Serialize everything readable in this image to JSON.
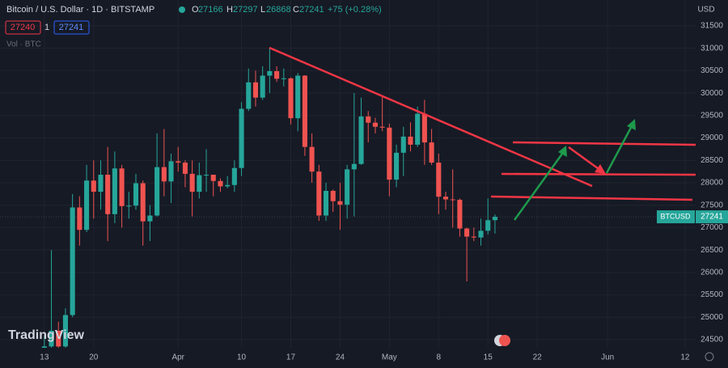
{
  "header": {
    "title": "Bitcoin / U.S. Dollar · 1D · BITSTAMP",
    "o_label": "O",
    "o": "27166",
    "h_label": "H",
    "h": "27297",
    "l_label": "L",
    "l": "26868",
    "c_label": "C",
    "c": "27241",
    "change": "+75 (+0.28%)",
    "bid": "27240",
    "spread": "1",
    "ask": "27241",
    "volume": "Vol · BTC",
    "currency": "USD",
    "symbol_tag": "BTCUSD",
    "price_tag": "27241",
    "logo": "TradingView"
  },
  "chart_data": {
    "type": "candlestick",
    "up_color": "#26a69a",
    "down_color": "#ef5350",
    "grid": true,
    "xlim": [
      -6.3,
      92.5
    ],
    "xticks": [
      {
        "value": 0,
        "label": "13"
      },
      {
        "value": 7,
        "label": "20"
      },
      {
        "value": 19,
        "label": "Apr"
      },
      {
        "value": 28,
        "label": "10"
      },
      {
        "value": 35,
        "label": "17"
      },
      {
        "value": 42,
        "label": "24"
      },
      {
        "value": 49,
        "label": "May"
      },
      {
        "value": 56,
        "label": "8"
      },
      {
        "value": 63,
        "label": "15"
      },
      {
        "value": 70,
        "label": "22"
      },
      {
        "value": 80,
        "label": "Jun"
      },
      {
        "value": 91,
        "label": "12"
      }
    ],
    "ylim": [
      24320,
      32077
    ],
    "yticks": [
      24500,
      25000,
      25500,
      26000,
      26500,
      27000,
      27500,
      28000,
      28500,
      29000,
      29500,
      30000,
      30500,
      31000,
      31500
    ],
    "open": [
      24200,
      24350,
      24700,
      24350,
      25050,
      27450,
      26950,
      28050,
      27800,
      28180,
      27300,
      28320,
      27480,
      27490,
      27990,
      27140,
      27270,
      28350,
      28030,
      28480,
      28450,
      28200,
      27800,
      28170,
      28180,
      28040,
      27920,
      27950,
      28330,
      29650,
      30240,
      29900,
      30390,
      30490,
      30320,
      30330,
      29440,
      30390,
      28800,
      28250,
      27270,
      27820,
      27590,
      27510,
      28300,
      28420,
      29480,
      29340,
      29250,
      29230,
      28070,
      28670,
      29030,
      28850,
      29540,
      28900,
      28450,
      27690,
      27630,
      27620,
      26980,
      26800,
      26780,
      26930,
      27166
    ],
    "high": [
      24600,
      26500,
      24900,
      25200,
      27750,
      27700,
      28400,
      28500,
      28500,
      28800,
      28700,
      28400,
      27800,
      28200,
      28050,
      27500,
      29100,
      29200,
      28650,
      28800,
      28500,
      28500,
      28450,
      28750,
      28180,
      28100,
      28150,
      28500,
      29800,
      30550,
      30500,
      30600,
      31000,
      30600,
      30550,
      30350,
      30450,
      30400,
      29100,
      28400,
      28000,
      27850,
      28000,
      28400,
      30000,
      29900,
      29600,
      29450,
      29950,
      29320,
      28850,
      29250,
      29350,
      29700,
      29850,
      29200,
      28650,
      27800,
      28300,
      27650,
      27000,
      27000,
      27200,
      27650,
      27297
    ],
    "low": [
      24050,
      24200,
      24000,
      24200,
      25000,
      26600,
      26900,
      27200,
      27400,
      26700,
      27100,
      27000,
      27200,
      27400,
      26600,
      26700,
      27250,
      27700,
      27550,
      28250,
      27900,
      27250,
      27650,
      27800,
      27700,
      27800,
      27880,
      27800,
      28150,
      29600,
      29700,
      29850,
      30000,
      30250,
      30150,
      29300,
      29150,
      28600,
      28000,
      27150,
      27150,
      27350,
      26950,
      27200,
      27250,
      28400,
      28900,
      29100,
      29150,
      27700,
      27900,
      28150,
      28700,
      28800,
      28400,
      28400,
      27300,
      27400,
      27000,
      26800,
      25800,
      26700,
      26600,
      26850,
      26868
    ],
    "close": [
      24350,
      24700,
      24350,
      25050,
      27450,
      26950,
      28050,
      27800,
      28180,
      27300,
      28320,
      27480,
      27490,
      27990,
      27140,
      27270,
      28350,
      28030,
      28480,
      28450,
      28200,
      27800,
      28170,
      28180,
      28040,
      27920,
      27950,
      28330,
      29650,
      30240,
      29900,
      30390,
      30490,
      30320,
      30330,
      29440,
      30390,
      28800,
      28250,
      27270,
      27820,
      27590,
      27510,
      28300,
      28420,
      29480,
      29340,
      29250,
      29230,
      28070,
      28670,
      29030,
      28850,
      29540,
      28900,
      28450,
      27690,
      27630,
      27620,
      26980,
      26800,
      26780,
      26930,
      27166,
      27241
    ]
  }
}
